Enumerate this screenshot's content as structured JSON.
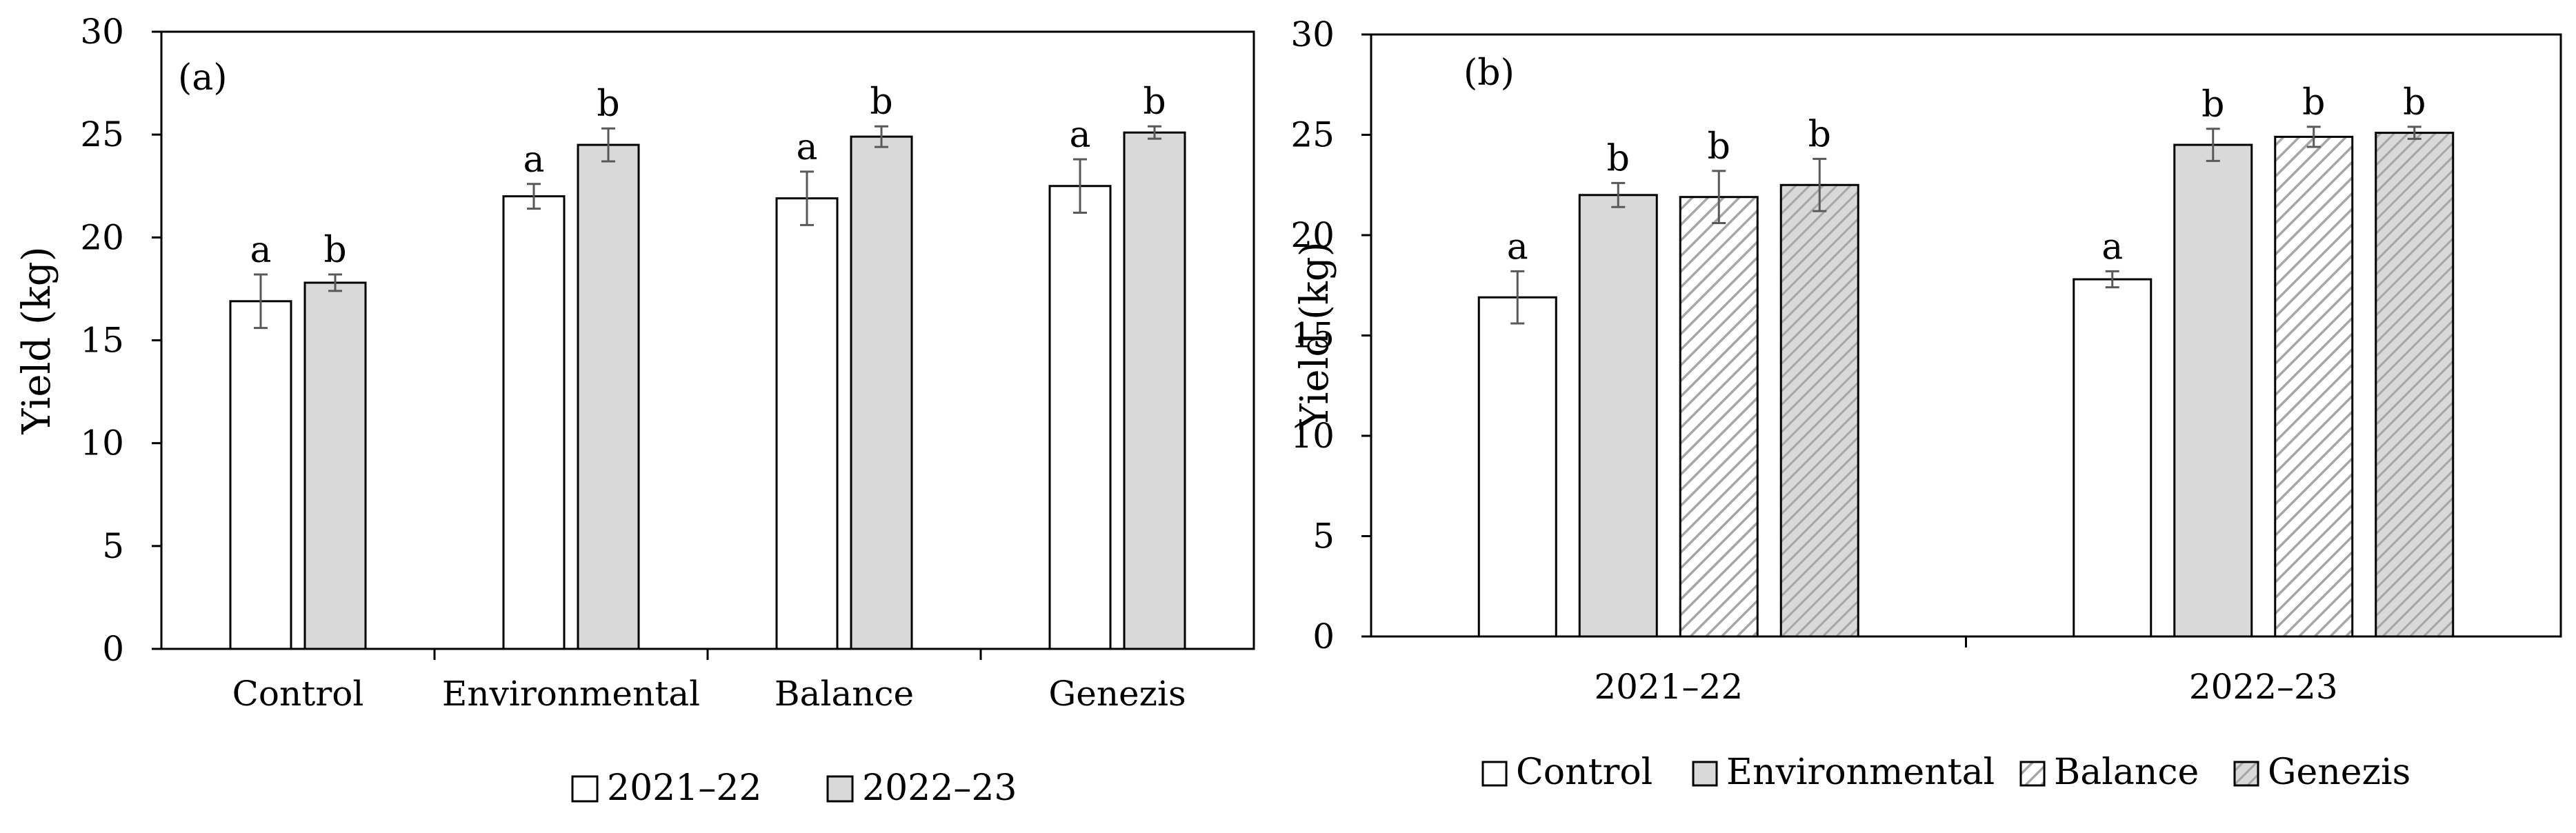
{
  "colors": {
    "control_fill": "#ffffff",
    "environmental_fill": "#d9d9d9",
    "stroke": "#000000",
    "error_bar": "#595959",
    "hatch_line": "#a6a6a6"
  },
  "chart_data": [
    {
      "type": "bar",
      "panel": "(a)",
      "ylabel": "Yield (kg)",
      "xlabel": "",
      "ylim": [
        0,
        30
      ],
      "yticks": [
        "0",
        "5",
        "10",
        "15",
        "20",
        "25",
        "30"
      ],
      "categories": [
        "Control",
        "Environmental",
        "Balance",
        "Genezis"
      ],
      "series": [
        {
          "name": "2021–22",
          "pattern": "white",
          "values": [
            16.9,
            22.0,
            21.9,
            22.5
          ],
          "errors": [
            1.3,
            0.6,
            1.3,
            1.3
          ],
          "letters": [
            "a",
            "a",
            "a",
            "a"
          ]
        },
        {
          "name": "2022–23",
          "pattern": "gray",
          "values": [
            17.8,
            24.5,
            24.9,
            25.1
          ],
          "errors": [
            0.4,
            0.8,
            0.5,
            0.3
          ],
          "letters": [
            "b",
            "b",
            "b",
            "b"
          ]
        }
      ],
      "legend": [
        "2021–22",
        "2022–23"
      ]
    },
    {
      "type": "bar",
      "panel": "(b)",
      "ylabel": "Yield (kg)",
      "xlabel": "",
      "ylim": [
        0,
        30
      ],
      "yticks": [
        "0",
        "5",
        "10",
        "15",
        "20",
        "25",
        "30"
      ],
      "categories": [
        "2021–22",
        "2022–23"
      ],
      "series": [
        {
          "name": "Control",
          "pattern": "white",
          "values": [
            16.9,
            17.8
          ],
          "errors": [
            1.3,
            0.4
          ],
          "letters": [
            "a",
            "a"
          ]
        },
        {
          "name": "Environmental",
          "pattern": "gray",
          "values": [
            22.0,
            24.5
          ],
          "errors": [
            0.6,
            0.8
          ],
          "letters": [
            "b",
            "b"
          ]
        },
        {
          "name": "Balance",
          "pattern": "hatch",
          "values": [
            21.9,
            24.9
          ],
          "errors": [
            1.3,
            0.5
          ],
          "letters": [
            "b",
            "b"
          ]
        },
        {
          "name": "Genezis",
          "pattern": "hatch-gray",
          "values": [
            22.5,
            25.1
          ],
          "errors": [
            1.3,
            0.3
          ],
          "letters": [
            "b",
            "b"
          ]
        }
      ],
      "legend": [
        "Control",
        "Environmental",
        "Balance",
        "Genezis"
      ]
    }
  ]
}
